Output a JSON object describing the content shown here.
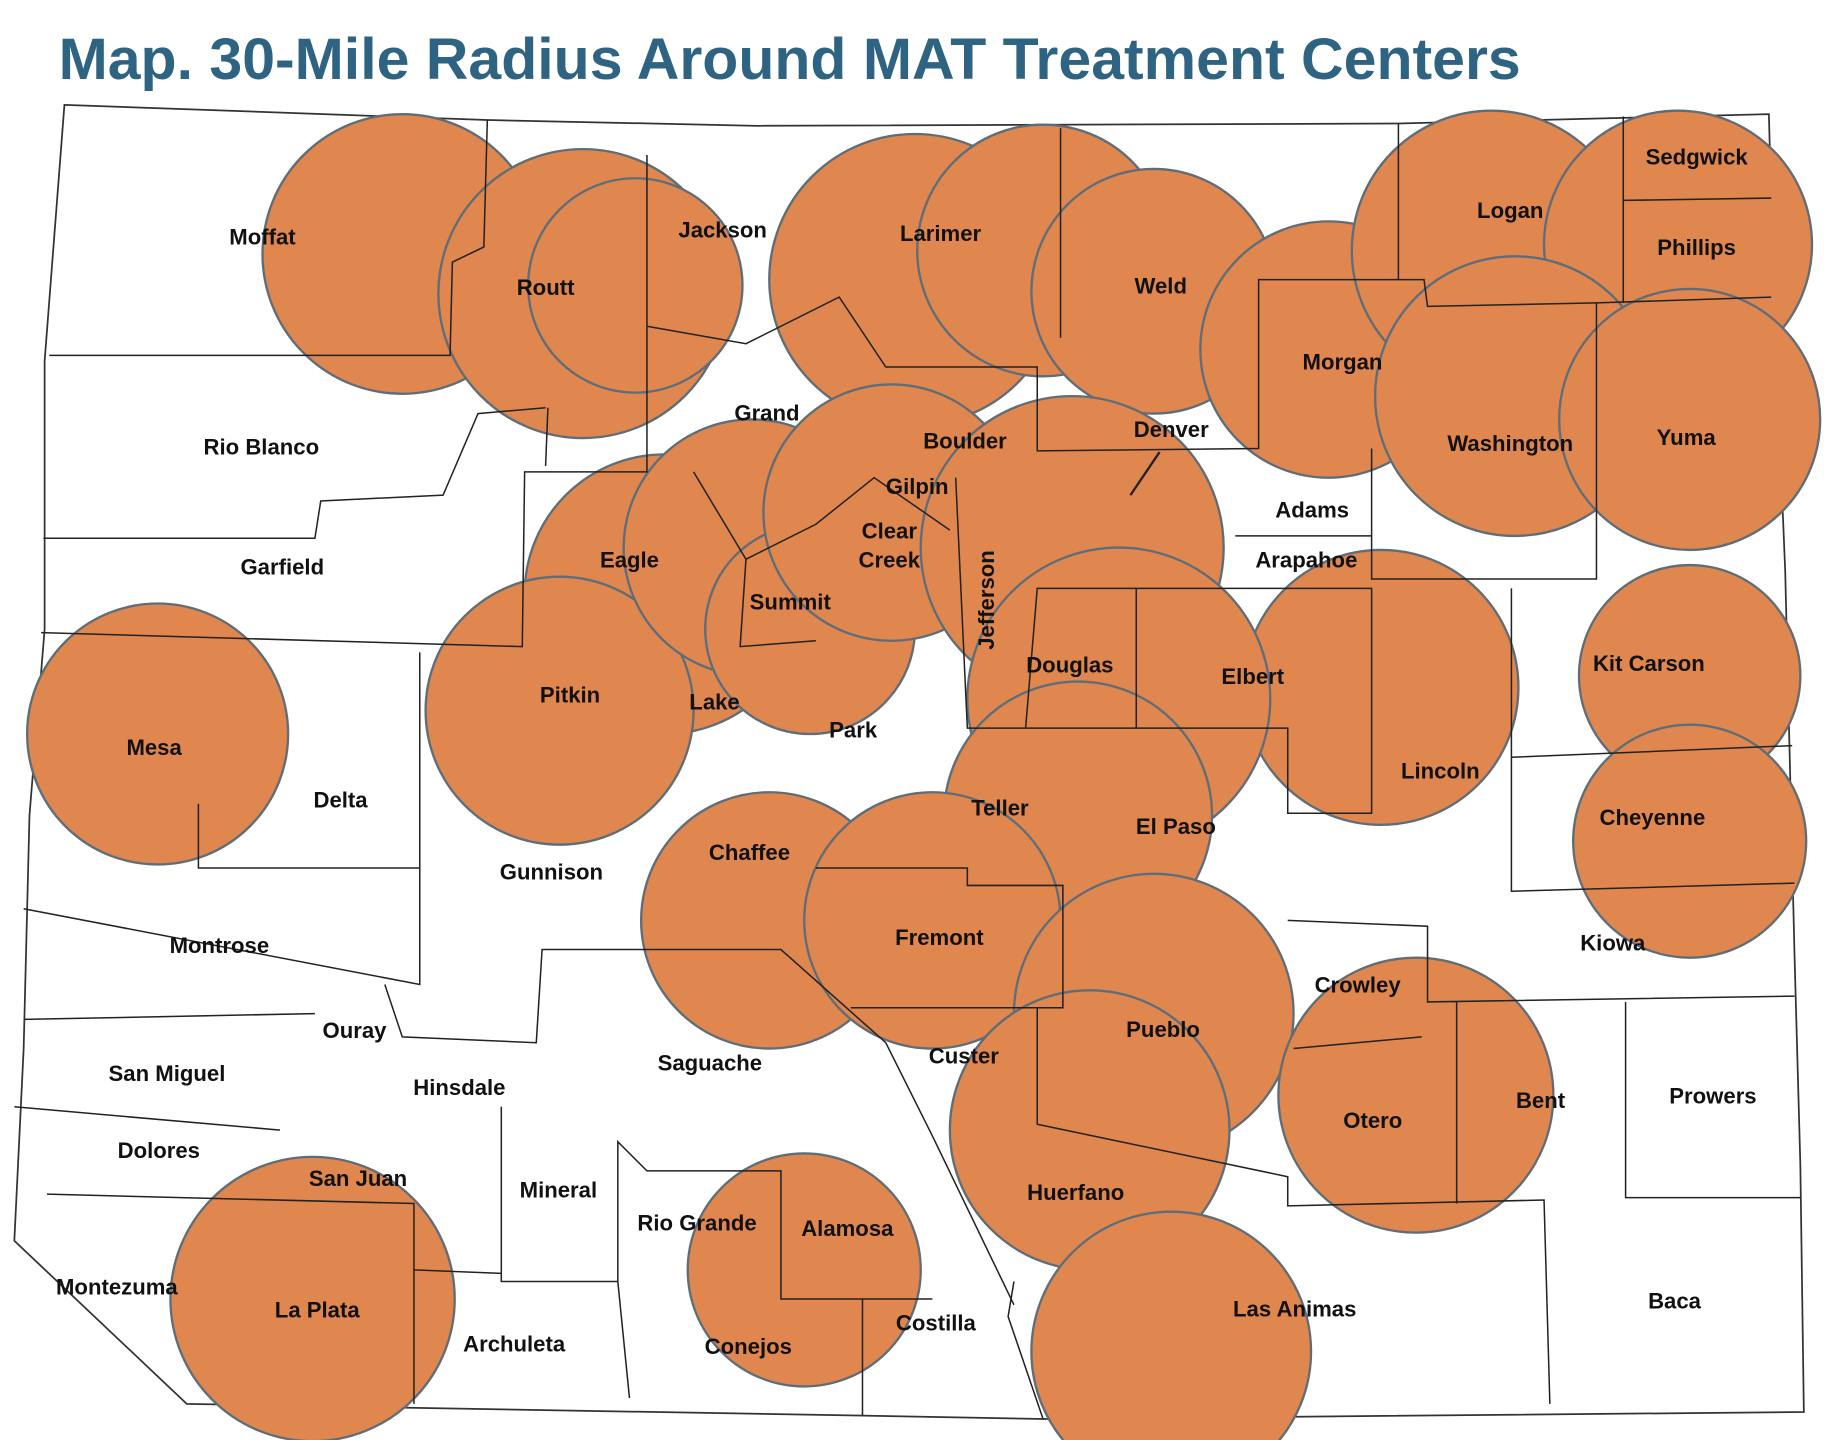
{
  "title": "Map. 30-Mile Radius Around MAT Treatment Centers",
  "counties": [
    "Moffat",
    "Routt",
    "Jackson",
    "Larimer",
    "Weld",
    "Logan",
    "Sedgwick",
    "Phillips",
    "Morgan",
    "Rio Blanco",
    "Grand",
    "Boulder",
    "Denver",
    "Washington",
    "Yuma",
    "Adams",
    "Gilpin",
    "Garfield",
    "Eagle",
    "Clear Creek",
    "Arapahoe",
    "Summit",
    "Jefferson",
    "Kit Carson",
    "Douglas",
    "Elbert",
    "Pitkin",
    "Lake",
    "Park",
    "Mesa",
    "Lincoln",
    "Delta",
    "Teller",
    "Cheyenne",
    "El Paso",
    "Chaffee",
    "Gunnison",
    "Fremont",
    "Montrose",
    "Kiowa",
    "Crowley",
    "Ouray",
    "Pueblo",
    "Custer",
    "Saguache",
    "San Miguel",
    "Hinsdale",
    "Prowers",
    "Bent",
    "Otero",
    "Dolores",
    "San Juan",
    "Huerfano",
    "Mineral",
    "Rio Grande",
    "Alamosa",
    "Montezuma",
    "Baca",
    "Las Animas",
    "La Plata",
    "Costilla",
    "Archuleta",
    "Conejos"
  ]
}
